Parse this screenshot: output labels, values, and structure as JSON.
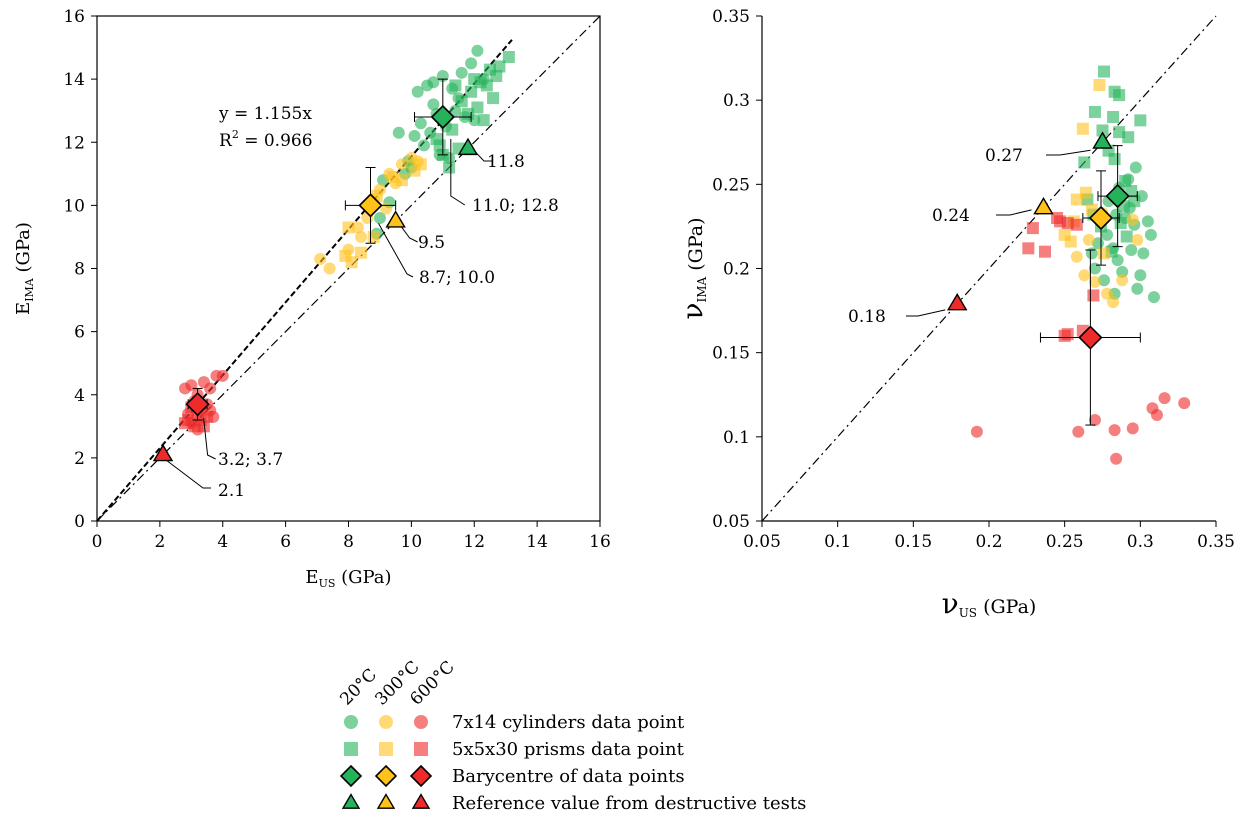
{
  "colors": {
    "t20": "#24b35a",
    "t300": "#ffc21a",
    "t600": "#ee2a2a",
    "axis": "#000000",
    "background": "#ffffff"
  },
  "legend": {
    "temperatures": [
      "20°C",
      "300°C",
      "600°C"
    ],
    "rows": [
      {
        "marker": "circle",
        "label": "7x14 cylinders data point"
      },
      {
        "marker": "square",
        "label": "5x5x30 prisms data point"
      },
      {
        "marker": "diamond",
        "label": "Barycentre of data points"
      },
      {
        "marker": "triangle",
        "label": "Reference value from destructive tests"
      }
    ]
  },
  "chart_data": [
    {
      "type": "scatter",
      "title": "",
      "xlabel_main": "E",
      "xlabel_sub": "US",
      "xlabel_unit": " (GPa)",
      "ylabel_main": "E",
      "ylabel_sub": "IMA",
      "ylabel_unit": " (GPa)",
      "xlim": [
        0,
        16
      ],
      "ylim": [
        0,
        16
      ],
      "xticks": [
        0,
        2,
        4,
        6,
        8,
        10,
        12,
        14,
        16
      ],
      "yticks": [
        0,
        2,
        4,
        6,
        8,
        10,
        12,
        14,
        16
      ],
      "xtick_labels": [
        "0",
        "2",
        "4",
        "6",
        "8",
        "10",
        "12",
        "14",
        "16"
      ],
      "ytick_labels": [
        "0",
        "2",
        "4",
        "6",
        "8",
        "10",
        "12",
        "14",
        "16"
      ],
      "grid": false,
      "fit_line": {
        "slope": 1.155,
        "style": "dashed",
        "x_range": [
          0,
          13.2
        ]
      },
      "identity_line": {
        "style": "dash-dot"
      },
      "equation_text": "y = 1.155x",
      "r2_prefix": "R",
      "r2_exp": "2",
      "r2_value": " = 0.966",
      "series": [
        {
          "temp": "20°C",
          "shape": "circle",
          "points": [
            [
              10.2,
              13.6
            ],
            [
              10.5,
              13.8
            ],
            [
              10.7,
              13.9
            ],
            [
              11.0,
              14.1
            ],
            [
              11.3,
              13.7
            ],
            [
              11.6,
              14.2
            ],
            [
              11.9,
              14.5
            ],
            [
              12.1,
              14.9
            ],
            [
              10.3,
              12.6
            ],
            [
              10.6,
              12.3
            ],
            [
              10.8,
              12.9
            ],
            [
              11.1,
              12.5
            ],
            [
              11.4,
              13.0
            ],
            [
              11.7,
              12.8
            ],
            [
              10.1,
              12.2
            ],
            [
              10.4,
              11.9
            ],
            [
              10.9,
              11.6
            ],
            [
              11.2,
              11.5
            ],
            [
              10.0,
              11.2
            ],
            [
              9.8,
              11.0
            ],
            [
              9.6,
              12.3
            ],
            [
              9.9,
              11.4
            ],
            [
              12.0,
              12.7
            ],
            [
              11.5,
              13.4
            ],
            [
              10.7,
              13.2
            ],
            [
              9.1,
              10.8
            ],
            [
              9.3,
              10.1
            ],
            [
              9.0,
              9.6
            ],
            [
              8.9,
              9.1
            ],
            [
              12.3,
              14.0
            ]
          ]
        },
        {
          "temp": "20°C",
          "shape": "square",
          "points": [
            [
              11.6,
              13.3
            ],
            [
              11.9,
              13.6
            ],
            [
              12.2,
              13.9
            ],
            [
              12.5,
              14.3
            ],
            [
              12.8,
              14.4
            ],
            [
              13.1,
              14.7
            ],
            [
              12.0,
              14.0
            ],
            [
              12.4,
              13.8
            ],
            [
              11.8,
              12.9
            ],
            [
              12.1,
              13.1
            ],
            [
              11.3,
              12.4
            ],
            [
              11.0,
              11.6
            ],
            [
              11.2,
              11.2
            ],
            [
              10.9,
              11.9
            ],
            [
              12.6,
              13.4
            ],
            [
              11.5,
              11.8
            ],
            [
              10.8,
              12.1
            ],
            [
              12.3,
              12.7
            ],
            [
              11.4,
              13.8
            ],
            [
              12.7,
              14.1
            ]
          ]
        },
        {
          "temp": "300°C",
          "shape": "circle",
          "points": [
            [
              7.1,
              8.3
            ],
            [
              7.4,
              8.0
            ],
            [
              8.0,
              8.6
            ],
            [
              8.3,
              9.3
            ],
            [
              8.6,
              9.6
            ],
            [
              8.8,
              10.2
            ],
            [
              9.0,
              10.5
            ],
            [
              9.3,
              11.0
            ],
            [
              9.7,
              11.3
            ],
            [
              10.0,
              11.5
            ],
            [
              9.2,
              9.9
            ],
            [
              8.4,
              9.0
            ],
            [
              9.5,
              10.7
            ],
            [
              10.2,
              11.4
            ]
          ]
        },
        {
          "temp": "300°C",
          "shape": "square",
          "points": [
            [
              7.9,
              8.4
            ],
            [
              8.1,
              8.2
            ],
            [
              8.4,
              8.5
            ],
            [
              8.0,
              9.3
            ],
            [
              8.8,
              9.0
            ],
            [
              9.4,
              10.9
            ],
            [
              9.7,
              10.8
            ],
            [
              10.1,
              11.1
            ],
            [
              10.3,
              11.3
            ],
            [
              8.9,
              10.3
            ]
          ]
        },
        {
          "temp": "600°C",
          "shape": "circle",
          "points": [
            [
              2.8,
              4.2
            ],
            [
              3.0,
              4.3
            ],
            [
              3.2,
              4.0
            ],
            [
              3.4,
              4.4
            ],
            [
              3.6,
              4.2
            ],
            [
              3.8,
              4.6
            ],
            [
              4.0,
              4.6
            ],
            [
              3.1,
              3.8
            ],
            [
              3.3,
              3.5
            ],
            [
              3.5,
              3.7
            ],
            [
              2.9,
              3.4
            ],
            [
              3.7,
              3.3
            ],
            [
              3.0,
              3.1
            ],
            [
              3.2,
              2.9
            ],
            [
              3.6,
              3.5
            ]
          ]
        },
        {
          "temp": "600°C",
          "shape": "square",
          "points": [
            [
              2.9,
              3.2
            ],
            [
              3.1,
              3.0
            ],
            [
              3.3,
              3.2
            ],
            [
              3.5,
              3.3
            ],
            [
              3.0,
              3.6
            ],
            [
              3.2,
              3.4
            ],
            [
              2.8,
              3.1
            ],
            [
              3.4,
              3.0
            ]
          ]
        }
      ],
      "barycentres": [
        {
          "temp": "20°C",
          "x": 11.0,
          "y": 12.8,
          "xerr": 0.9,
          "yerr": 1.2,
          "label": "11.0; 12.8"
        },
        {
          "temp": "300°C",
          "x": 8.7,
          "y": 10.0,
          "xerr": 0.8,
          "yerr": 1.2,
          "label": "8.7; 10.0"
        },
        {
          "temp": "600°C",
          "x": 3.2,
          "y": 3.7,
          "xerr": 0.3,
          "yerr": 0.5,
          "label": "3.2; 3.7"
        }
      ],
      "references": [
        {
          "temp": "20°C",
          "x": 11.8,
          "y": 11.8,
          "label": "11.8"
        },
        {
          "temp": "300°C",
          "x": 9.5,
          "y": 9.5,
          "label": "9.5"
        },
        {
          "temp": "600°C",
          "x": 2.1,
          "y": 2.1,
          "label": "2.1"
        }
      ]
    },
    {
      "type": "scatter",
      "title": "",
      "xlabel_main": "ν",
      "xlabel_sub": "US",
      "xlabel_unit": " (GPa)",
      "ylabel_main": "ν",
      "ylabel_sub": "IMA",
      "ylabel_unit": " (GPa)",
      "xlim": [
        0.05,
        0.35
      ],
      "ylim": [
        0.05,
        0.35
      ],
      "xticks": [
        0.05,
        0.1,
        0.15,
        0.2,
        0.25,
        0.3,
        0.35
      ],
      "yticks": [
        0.05,
        0.1,
        0.15,
        0.2,
        0.25,
        0.3,
        0.35
      ],
      "xtick_labels": [
        "0.05",
        "0.1",
        "0.15",
        "0.2",
        "0.25",
        "0.3",
        "0.35"
      ],
      "ytick_labels": [
        "0.05",
        "0.1",
        "0.15",
        "0.2",
        "0.25",
        "0.3",
        "0.35"
      ],
      "grid": false,
      "identity_line": {
        "style": "dash-dot"
      },
      "series": [
        {
          "temp": "20°C",
          "shape": "circle",
          "points": [
            [
              0.268,
              0.209
            ],
            [
              0.272,
              0.215
            ],
            [
              0.278,
              0.22
            ],
            [
              0.282,
              0.212
            ],
            [
              0.285,
              0.205
            ],
            [
              0.29,
              0.23
            ],
            [
              0.293,
              0.236
            ],
            [
              0.296,
              0.226
            ],
            [
              0.298,
              0.188
            ],
            [
              0.3,
              0.196
            ],
            [
              0.302,
              0.209
            ],
            [
              0.305,
              0.228
            ],
            [
              0.307,
              0.22
            ],
            [
              0.309,
              0.183
            ],
            [
              0.288,
              0.198
            ],
            [
              0.283,
              0.185
            ],
            [
              0.279,
              0.24
            ],
            [
              0.286,
              0.248
            ],
            [
              0.292,
              0.253
            ],
            [
              0.297,
              0.26
            ],
            [
              0.276,
              0.193
            ],
            [
              0.27,
              0.2
            ],
            [
              0.301,
              0.243
            ],
            [
              0.294,
              0.211
            ],
            [
              0.284,
              0.232
            ]
          ]
        },
        {
          "temp": "20°C",
          "shape": "square",
          "points": [
            [
              0.27,
              0.293
            ],
            [
              0.276,
              0.317
            ],
            [
              0.283,
              0.305
            ],
            [
              0.286,
              0.303
            ],
            [
              0.282,
              0.29
            ],
            [
              0.292,
              0.278
            ],
            [
              0.3,
              0.288
            ],
            [
              0.275,
              0.282
            ],
            [
              0.286,
              0.281
            ],
            [
              0.279,
              0.27
            ],
            [
              0.283,
              0.265
            ],
            [
              0.29,
              0.252
            ],
            [
              0.296,
              0.24
            ],
            [
              0.265,
              0.241
            ],
            [
              0.263,
              0.263
            ],
            [
              0.274,
              0.225
            ],
            [
              0.281,
              0.21
            ],
            [
              0.287,
              0.227
            ],
            [
              0.291,
              0.219
            ],
            [
              0.294,
              0.246
            ],
            [
              0.269,
              0.232
            ],
            [
              0.289,
              0.237
            ]
          ]
        },
        {
          "temp": "300°C",
          "shape": "circle",
          "points": [
            [
              0.263,
              0.196
            ],
            [
              0.27,
              0.192
            ],
            [
              0.278,
              0.185
            ],
            [
              0.282,
              0.18
            ],
            [
              0.288,
              0.193
            ],
            [
              0.298,
              0.217
            ],
            [
              0.295,
              0.229
            ],
            [
              0.266,
              0.217
            ],
            [
              0.258,
              0.207
            ],
            [
              0.275,
              0.233
            ]
          ]
        },
        {
          "temp": "300°C",
          "shape": "square",
          "points": [
            [
              0.262,
              0.283
            ],
            [
              0.273,
              0.309
            ],
            [
              0.25,
              0.22
            ],
            [
              0.254,
              0.216
            ],
            [
              0.256,
              0.228
            ],
            [
              0.264,
              0.245
            ],
            [
              0.276,
              0.209
            ],
            [
              0.268,
              0.235
            ],
            [
              0.258,
              0.241
            ]
          ]
        },
        {
          "temp": "600°C",
          "shape": "circle",
          "points": [
            [
              0.192,
              0.103
            ],
            [
              0.259,
              0.103
            ],
            [
              0.27,
              0.11
            ],
            [
              0.283,
              0.104
            ],
            [
              0.284,
              0.087
            ],
            [
              0.295,
              0.105
            ],
            [
              0.308,
              0.117
            ],
            [
              0.311,
              0.113
            ],
            [
              0.316,
              0.123
            ],
            [
              0.329,
              0.12
            ]
          ]
        },
        {
          "temp": "600°C",
          "shape": "square",
          "points": [
            [
              0.226,
              0.212
            ],
            [
              0.229,
              0.224
            ],
            [
              0.237,
              0.21
            ],
            [
              0.247,
              0.228
            ],
            [
              0.252,
              0.227
            ],
            [
              0.258,
              0.226
            ],
            [
              0.269,
              0.184
            ],
            [
              0.252,
              0.161
            ],
            [
              0.25,
              0.16
            ],
            [
              0.262,
              0.163
            ],
            [
              0.245,
              0.23
            ]
          ]
        }
      ],
      "barycentres": [
        {
          "temp": "20°C",
          "x": 0.285,
          "y": 0.243,
          "xerr": 0.013,
          "yerr": 0.03
        },
        {
          "temp": "300°C",
          "x": 0.274,
          "y": 0.23,
          "xerr": 0.012,
          "yerr": 0.028
        },
        {
          "temp": "600°C",
          "x": 0.267,
          "y": 0.159,
          "xerr": 0.033,
          "yerr": 0.052
        }
      ],
      "references": [
        {
          "temp": "20°C",
          "x": 0.275,
          "y": 0.275,
          "label": "0.27"
        },
        {
          "temp": "300°C",
          "x": 0.236,
          "y": 0.236,
          "label": "0.24"
        },
        {
          "temp": "600°C",
          "x": 0.179,
          "y": 0.179,
          "label": "0.18"
        }
      ]
    }
  ]
}
